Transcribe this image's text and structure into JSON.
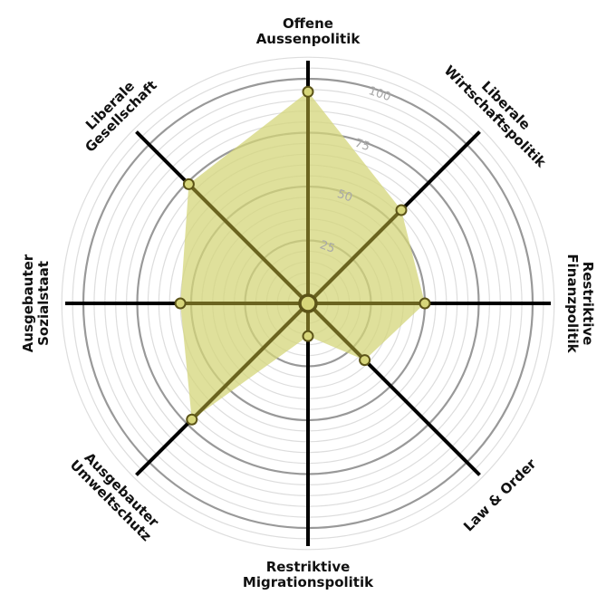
{
  "chart_data": {
    "type": "radar",
    "title": "",
    "axes": [
      {
        "label": [
          "Offene",
          "Aussenpolitik"
        ],
        "value": 94
      },
      {
        "label": [
          "Liberale",
          "Wirtschaftspolitik"
        ],
        "value": 57
      },
      {
        "label": [
          "Restriktive",
          "Finanzpolitik"
        ],
        "value": 50
      },
      {
        "label": [
          "Law & Order"
        ],
        "value": 33
      },
      {
        "label": [
          "Restriktive",
          "Migrationspolitik"
        ],
        "value": 11
      },
      {
        "label": [
          "Ausgebauter",
          "Umweltschutz"
        ],
        "value": 72
      },
      {
        "label": [
          "Ausgebauter",
          "Sozialstaat"
        ],
        "value": 55
      },
      {
        "label": [
          "Liberale",
          "Gesellschaft"
        ],
        "value": 74
      }
    ],
    "range": [
      0,
      100
    ],
    "ticks": [
      25,
      50,
      75,
      100
    ],
    "grid": true,
    "colors": {
      "fill": "#d4d67a",
      "fill_opacity": 0.75,
      "spoke_inner": "#6b6420",
      "spoke_outer": "#000000",
      "marker_fill": "#d7d67a",
      "marker_stroke": "#5c5418",
      "grid_major": "#999999",
      "grid_minor": "#dddddd",
      "tick_text": "#a8a8a8"
    }
  }
}
